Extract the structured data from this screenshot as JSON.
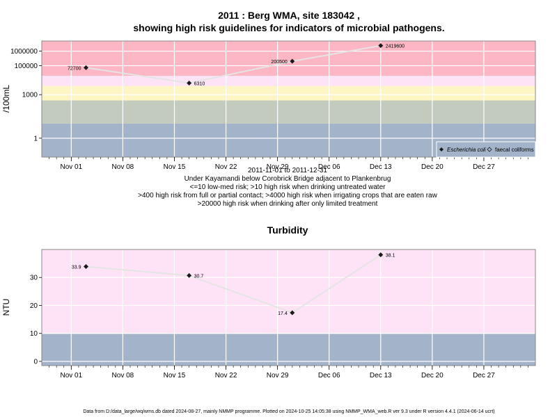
{
  "header": {
    "title_line1": "2011 : Berg WMA, site 183042 ,",
    "title_line2": "showing high risk guidelines for indicators of microbial pathogens."
  },
  "subtitle": {
    "date_range": "2011-11-01 to 2011-12-31",
    "location": "Under Kayamandi below Corobrick Bridge adjacent to Plankenbrug",
    "guide1": "<=10 low-med risk; >10 high risk when drinking untreated water",
    "guide2": ">400 high risk from full or partial contact; >4000 high risk when irrigating crops that are eaten raw",
    "guide3": ">20000 high risk when drinking after only limited treatment"
  },
  "footer": {
    "text": "Data from D:/data_large/wq/wms.db dated 2024-08-27, mainly NMMP programme. Plotted on 2024-10-25 14:05:38 using NMMP_WMA_web.R ver 9.3 under R version 4.4.1 (2024-06-14 ucrt)"
  },
  "x_ticks": [
    "Nov 01",
    "Nov 08",
    "Nov 15",
    "Nov 22",
    "Nov 29",
    "Dec 06",
    "Dec 13",
    "Dec 20",
    "Dec 27"
  ],
  "colors": {
    "band_blue": "#a3b3ca",
    "band_green": "#c3cbbe",
    "band_yellow": "#fef5c5",
    "band_pink_light": "#fde3f5",
    "band_red": "#fdb6c3",
    "line": "#e4e4e4",
    "point": "#1a1a1a",
    "grid": "#ffffff",
    "frame": "#8a8a8a"
  },
  "chart_data": [
    {
      "type": "line",
      "name": "microbial",
      "ylabel": "/100mL",
      "y_scale": "log",
      "y_ticks": [
        "1",
        "1000",
        "100000",
        "1000000"
      ],
      "x_range": [
        "2011-10-28",
        "2012-01-03"
      ],
      "y_range": [
        0.05,
        5000000
      ],
      "risk_bands": [
        {
          "from": 0.05,
          "to": 10,
          "color": "band_blue"
        },
        {
          "from": 10,
          "to": 400,
          "color": "band_green"
        },
        {
          "from": 400,
          "to": 4000,
          "color": "band_yellow"
        },
        {
          "from": 4000,
          "to": 20000,
          "color": "band_pink_light"
        },
        {
          "from": 20000,
          "to": 5000000,
          "color": "band_red"
        }
      ],
      "legend": {
        "position": "bottom-right",
        "entries": [
          {
            "label": "Escherichia coli",
            "marker": "filled-diamond",
            "italic": true
          },
          {
            "label": "faecal coliforms",
            "marker": "open-diamond",
            "italic": false
          }
        ]
      },
      "series": [
        {
          "name": "Escherichia coli",
          "points": [
            {
              "x": "2011-11-03",
              "y": 72700,
              "label": "72700",
              "label_side": "left"
            },
            {
              "x": "2011-11-17",
              "y": 6310,
              "label": "6310",
              "label_side": "right"
            },
            {
              "x": "2011-12-01",
              "y": 200500,
              "label": "200500",
              "label_side": "left"
            },
            {
              "x": "2011-12-13",
              "y": 2419600,
              "label": "2419600",
              "label_side": "right"
            }
          ]
        }
      ]
    },
    {
      "type": "line",
      "name": "turbidity",
      "title": "Turbidity",
      "ylabel": "NTU",
      "y_scale": "linear",
      "y_ticks": [
        "0",
        "10",
        "20",
        "30"
      ],
      "x_range": [
        "2011-10-28",
        "2012-01-03"
      ],
      "y_range": [
        -1.5,
        40
      ],
      "risk_bands": [
        {
          "from": -1.5,
          "to": 10,
          "color": "band_blue"
        },
        {
          "from": 10,
          "to": 40,
          "color": "band_pink_light"
        }
      ],
      "series": [
        {
          "name": "Turbidity",
          "points": [
            {
              "x": "2011-11-03",
              "y": 33.9,
              "label": "33.9",
              "label_side": "left"
            },
            {
              "x": "2011-11-17",
              "y": 30.7,
              "label": "30.7",
              "label_side": "right"
            },
            {
              "x": "2011-12-01",
              "y": 17.4,
              "label": "17.4",
              "label_side": "left"
            },
            {
              "x": "2011-12-13",
              "y": 38.1,
              "label": "38.1",
              "label_side": "right"
            }
          ]
        }
      ]
    }
  ]
}
